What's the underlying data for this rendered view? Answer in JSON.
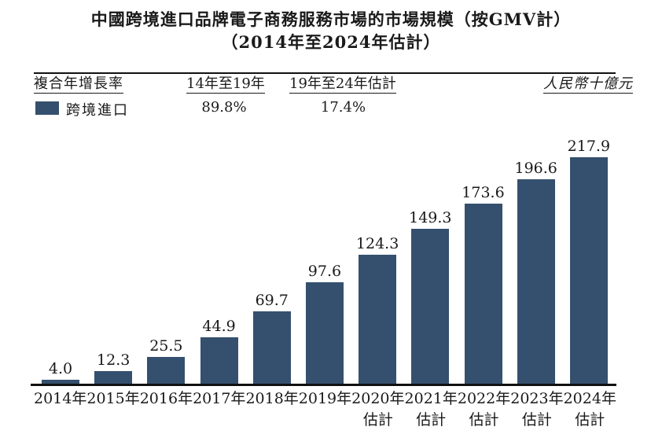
{
  "title": {
    "line1": "中國跨境進口品牌電子商務服務市場的市場規模（按GMV計）",
    "line2": "（2014年至2024年估計）"
  },
  "legend": {
    "cagr_label": "複合年增長率",
    "period1_header": "14年至19年",
    "period2_header": "19年至24年估計",
    "unit_label": "人民幣十億元",
    "series_label": "跨境進口",
    "period1_value": "89.8%",
    "period2_value": "17.4%"
  },
  "colors": {
    "bar": "#35506E",
    "text": "#1A1A1A",
    "axis": "#111111"
  },
  "chart_data": {
    "type": "bar",
    "title": "中國跨境進口品牌電子商務服務市場的市場規模（按GMV計）（2014年至2024年估計）",
    "series_name": "跨境進口",
    "categories": [
      "2014年",
      "2015年",
      "2016年",
      "2017年",
      "2018年",
      "2019年",
      "2020年估計",
      "2021年估計",
      "2022年估計",
      "2023年估計",
      "2024年估計"
    ],
    "values": [
      4.0,
      12.3,
      25.5,
      44.9,
      69.7,
      97.6,
      124.3,
      149.3,
      173.6,
      196.6,
      217.9
    ],
    "xlabel": "",
    "ylabel": "人民幣十億元",
    "ylim": [
      0,
      230
    ],
    "grid": false,
    "data_labels": true,
    "legend_position": "top-left",
    "annotations": {
      "cagr_2014_2019": "89.8%",
      "cagr_2019_2024_est": "17.4%"
    }
  }
}
